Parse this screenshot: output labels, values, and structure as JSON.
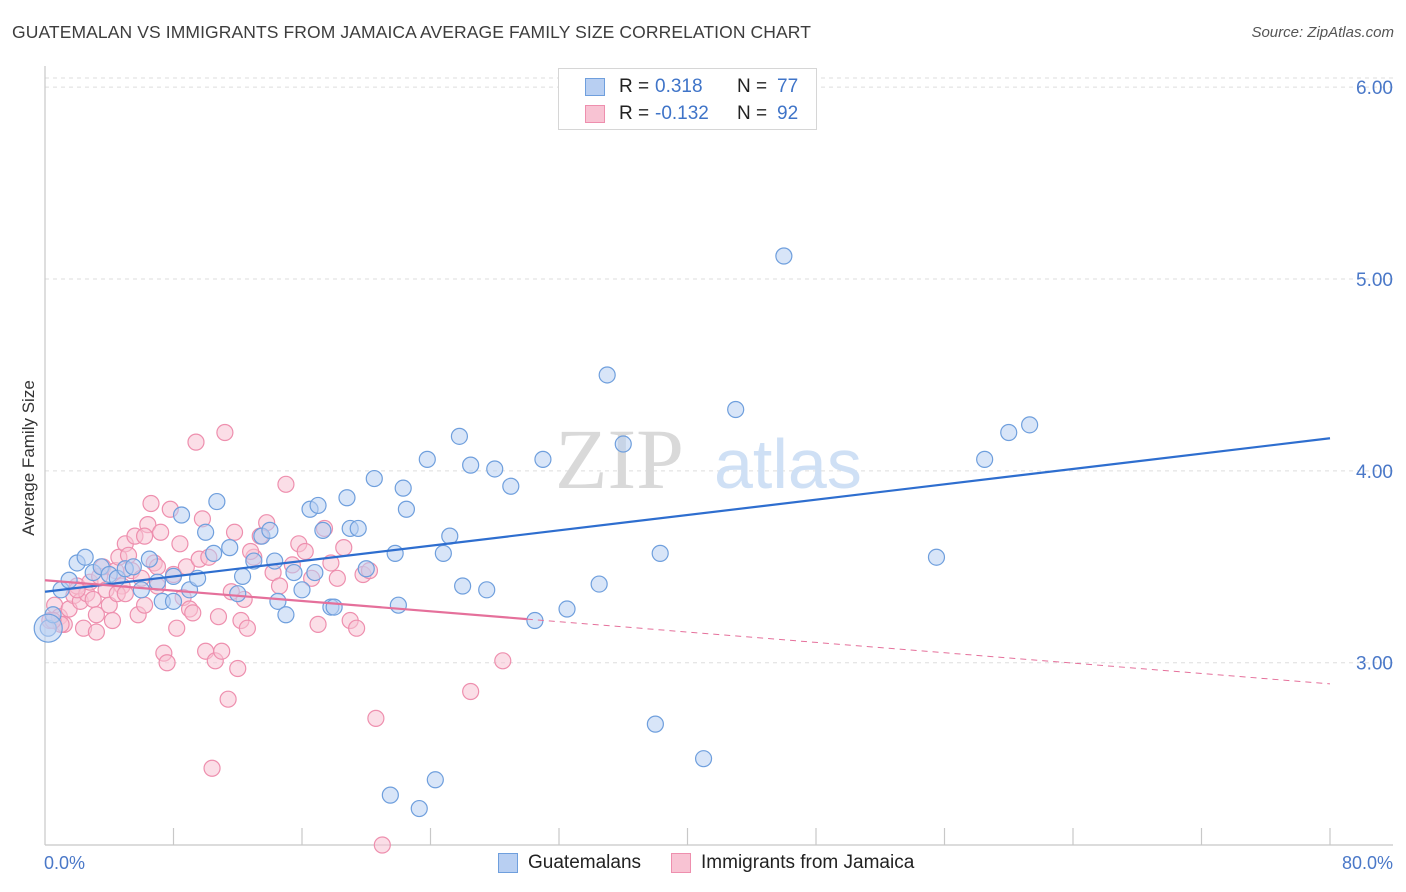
{
  "title": "GUATEMALAN VS IMMIGRANTS FROM JAMAICA AVERAGE FAMILY SIZE CORRELATION CHART",
  "source": "Source: ZipAtlas.com",
  "watermark": {
    "zip": "ZIP",
    "atlas": "atlas"
  },
  "colors": {
    "blue_fill": "#b8cff2",
    "blue_stroke": "#6f9fdd",
    "blue_line": "#2e6ecf",
    "pink_fill": "#f8c3d3",
    "pink_stroke": "#ee8fae",
    "pink_line": "#e5709b",
    "tick_text": "#4a78c8",
    "grid": "#dedede"
  },
  "legend": {
    "series1": {
      "r_label": "R =",
      "r_value": "0.318",
      "n_label": "N =",
      "n_value": "77"
    },
    "series2": {
      "r_label": "R =",
      "r_value": "-0.132",
      "n_label": "N =",
      "n_value": "92"
    }
  },
  "bottom_legend": {
    "series1": "Guatemalans",
    "series2": "Immigrants from Jamaica"
  },
  "chart_data": {
    "type": "scatter",
    "xlabel": "",
    "ylabel": "Average Family Size",
    "xlim": [
      0,
      80
    ],
    "ylim": [
      2.05,
      6.1
    ],
    "x_tick_labels": {
      "min": "0.0%",
      "max": "80.0%"
    },
    "y_ticks": [
      3.0,
      4.0,
      5.0,
      6.0
    ],
    "y_tick_labels": [
      "3.00",
      "4.00",
      "5.00",
      "6.00"
    ],
    "grid": true,
    "series": [
      {
        "name": "Guatemalans",
        "trend": {
          "x": [
            0,
            80
          ],
          "y": [
            3.37,
            4.17
          ],
          "dashed_from": null
        },
        "points": [
          [
            0.2,
            3.18
          ],
          [
            0.5,
            3.25
          ],
          [
            1.0,
            3.38
          ],
          [
            1.5,
            3.43
          ],
          [
            2.0,
            3.52
          ],
          [
            2.5,
            3.55
          ],
          [
            3.0,
            3.47
          ],
          [
            3.5,
            3.5
          ],
          [
            4.0,
            3.46
          ],
          [
            4.5,
            3.44
          ],
          [
            5.0,
            3.49
          ],
          [
            5.5,
            3.5
          ],
          [
            6.0,
            3.38
          ],
          [
            6.5,
            3.54
          ],
          [
            7.0,
            3.42
          ],
          [
            7.3,
            3.32
          ],
          [
            8.0,
            3.45
          ],
          [
            8.5,
            3.77
          ],
          [
            9.0,
            3.38
          ],
          [
            9.5,
            3.44
          ],
          [
            10.0,
            3.68
          ],
          [
            10.5,
            3.57
          ],
          [
            10.7,
            3.84
          ],
          [
            11.5,
            3.6
          ],
          [
            12.0,
            3.36
          ],
          [
            12.3,
            3.45
          ],
          [
            13.0,
            3.53
          ],
          [
            13.5,
            3.66
          ],
          [
            14.0,
            3.69
          ],
          [
            14.3,
            3.53
          ],
          [
            14.5,
            3.32
          ],
          [
            15.0,
            3.25
          ],
          [
            15.5,
            3.47
          ],
          [
            16.0,
            3.38
          ],
          [
            16.5,
            3.8
          ],
          [
            16.8,
            3.47
          ],
          [
            17.0,
            3.82
          ],
          [
            17.3,
            3.69
          ],
          [
            17.8,
            3.29
          ],
          [
            18.0,
            3.29
          ],
          [
            18.8,
            3.86
          ],
          [
            19.0,
            3.7
          ],
          [
            19.5,
            3.7
          ],
          [
            20.0,
            3.49
          ],
          [
            20.5,
            3.96
          ],
          [
            21.5,
            2.31
          ],
          [
            21.8,
            3.57
          ],
          [
            22.0,
            3.3
          ],
          [
            22.3,
            3.91
          ],
          [
            22.5,
            3.8
          ],
          [
            23.3,
            2.24
          ],
          [
            23.8,
            4.06
          ],
          [
            24.3,
            2.39
          ],
          [
            24.8,
            3.57
          ],
          [
            25.2,
            3.66
          ],
          [
            25.8,
            4.18
          ],
          [
            26.0,
            3.4
          ],
          [
            26.5,
            4.03
          ],
          [
            27.5,
            3.38
          ],
          [
            28.0,
            4.01
          ],
          [
            29.0,
            3.92
          ],
          [
            30.5,
            3.22
          ],
          [
            31.0,
            4.06
          ],
          [
            32.5,
            3.28
          ],
          [
            34.5,
            3.41
          ],
          [
            35.0,
            4.5
          ],
          [
            36.0,
            4.14
          ],
          [
            38.0,
            2.68
          ],
          [
            38.3,
            3.57
          ],
          [
            41.0,
            2.5
          ],
          [
            43.0,
            4.32
          ],
          [
            46.0,
            5.12
          ],
          [
            55.5,
            3.55
          ],
          [
            58.5,
            4.06
          ],
          [
            60.0,
            4.2
          ],
          [
            61.3,
            4.24
          ],
          [
            8.0,
            3.32
          ]
        ]
      },
      {
        "name": "Immigrants from Jamaica",
        "trend": {
          "x": [
            0,
            80
          ],
          "y": [
            3.43,
            2.89
          ],
          "dashed_from": 30
        },
        "points": [
          [
            0.3,
            3.22
          ],
          [
            0.6,
            3.3
          ],
          [
            0.9,
            3.24
          ],
          [
            1.2,
            3.2
          ],
          [
            1.5,
            3.28
          ],
          [
            1.8,
            3.35
          ],
          [
            2.0,
            3.4
          ],
          [
            2.2,
            3.32
          ],
          [
            2.4,
            3.18
          ],
          [
            2.6,
            3.36
          ],
          [
            2.8,
            3.42
          ],
          [
            3.0,
            3.33
          ],
          [
            3.2,
            3.25
          ],
          [
            3.4,
            3.45
          ],
          [
            3.6,
            3.5
          ],
          [
            3.8,
            3.38
          ],
          [
            4.0,
            3.3
          ],
          [
            4.2,
            3.22
          ],
          [
            4.4,
            3.48
          ],
          [
            4.6,
            3.55
          ],
          [
            4.8,
            3.4
          ],
          [
            5.0,
            3.62
          ],
          [
            5.2,
            3.56
          ],
          [
            5.4,
            3.48
          ],
          [
            5.6,
            3.66
          ],
          [
            5.8,
            3.25
          ],
          [
            6.0,
            3.44
          ],
          [
            6.2,
            3.3
          ],
          [
            6.4,
            3.72
          ],
          [
            6.6,
            3.83
          ],
          [
            6.8,
            3.52
          ],
          [
            7.0,
            3.4
          ],
          [
            7.2,
            3.68
          ],
          [
            7.4,
            3.05
          ],
          [
            7.6,
            3.0
          ],
          [
            7.8,
            3.8
          ],
          [
            8.0,
            3.46
          ],
          [
            8.2,
            3.18
          ],
          [
            8.4,
            3.62
          ],
          [
            8.6,
            3.34
          ],
          [
            8.8,
            3.5
          ],
          [
            9.0,
            3.28
          ],
          [
            9.2,
            3.26
          ],
          [
            9.4,
            4.15
          ],
          [
            9.6,
            3.54
          ],
          [
            9.8,
            3.75
          ],
          [
            10.0,
            3.06
          ],
          [
            10.2,
            3.55
          ],
          [
            10.4,
            2.45
          ],
          [
            10.6,
            3.01
          ],
          [
            10.8,
            3.24
          ],
          [
            11.0,
            3.06
          ],
          [
            11.2,
            4.2
          ],
          [
            11.4,
            2.81
          ],
          [
            11.6,
            3.37
          ],
          [
            11.8,
            3.68
          ],
          [
            12.0,
            2.97
          ],
          [
            12.2,
            3.22
          ],
          [
            12.4,
            3.33
          ],
          [
            12.6,
            3.18
          ],
          [
            13.0,
            3.55
          ],
          [
            13.4,
            3.66
          ],
          [
            13.8,
            3.73
          ],
          [
            14.2,
            3.47
          ],
          [
            14.6,
            3.4
          ],
          [
            15.0,
            3.93
          ],
          [
            15.4,
            3.51
          ],
          [
            15.8,
            3.62
          ],
          [
            16.2,
            3.58
          ],
          [
            16.6,
            3.44
          ],
          [
            17.0,
            3.2
          ],
          [
            17.4,
            3.7
          ],
          [
            17.8,
            3.52
          ],
          [
            18.2,
            3.44
          ],
          [
            18.6,
            3.6
          ],
          [
            19.0,
            3.22
          ],
          [
            19.4,
            3.18
          ],
          [
            19.8,
            3.46
          ],
          [
            20.2,
            3.48
          ],
          [
            20.6,
            2.71
          ],
          [
            21.0,
            2.05
          ],
          [
            26.5,
            2.85
          ],
          [
            28.5,
            3.01
          ],
          [
            4.5,
            3.36
          ],
          [
            3.2,
            3.16
          ],
          [
            2.0,
            3.38
          ],
          [
            6.2,
            3.66
          ],
          [
            7.0,
            3.5
          ],
          [
            5.0,
            3.36
          ],
          [
            1.0,
            3.2
          ],
          [
            12.8,
            3.58
          ],
          [
            0.5,
            3.22
          ]
        ]
      }
    ]
  }
}
